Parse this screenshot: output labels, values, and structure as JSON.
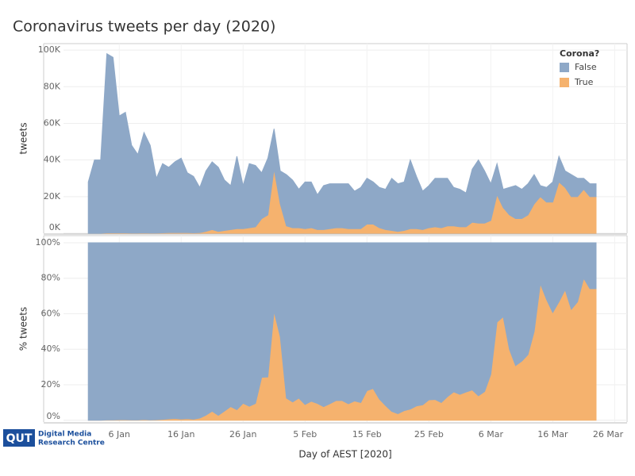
{
  "chart_data": [
    {
      "type": "area",
      "title": "Coronavirus tweets per day (2020)",
      "ylabel": "tweets",
      "x": [
        "2020-01-01",
        "2020-01-02",
        "2020-01-03",
        "2020-01-04",
        "2020-01-05",
        "2020-01-06",
        "2020-01-07",
        "2020-01-08",
        "2020-01-09",
        "2020-01-10",
        "2020-01-11",
        "2020-01-12",
        "2020-01-13",
        "2020-01-14",
        "2020-01-15",
        "2020-01-16",
        "2020-01-17",
        "2020-01-18",
        "2020-01-19",
        "2020-01-20",
        "2020-01-21",
        "2020-01-22",
        "2020-01-23",
        "2020-01-24",
        "2020-01-25",
        "2020-01-26",
        "2020-01-27",
        "2020-01-28",
        "2020-01-29",
        "2020-01-30",
        "2020-01-31",
        "2020-02-01",
        "2020-02-02",
        "2020-02-03",
        "2020-02-04",
        "2020-02-05",
        "2020-02-06",
        "2020-02-07",
        "2020-02-08",
        "2020-02-09",
        "2020-02-10",
        "2020-02-11",
        "2020-02-12",
        "2020-02-13",
        "2020-02-14",
        "2020-02-15",
        "2020-02-16",
        "2020-02-17",
        "2020-02-18",
        "2020-02-19",
        "2020-02-20",
        "2020-02-21",
        "2020-02-22",
        "2020-02-23",
        "2020-02-24",
        "2020-02-25",
        "2020-02-26",
        "2020-02-27",
        "2020-02-28",
        "2020-02-29",
        "2020-03-01",
        "2020-03-02",
        "2020-03-03",
        "2020-03-04",
        "2020-03-05",
        "2020-03-06",
        "2020-03-07",
        "2020-03-08",
        "2020-03-09",
        "2020-03-10",
        "2020-03-11",
        "2020-03-12",
        "2020-03-13",
        "2020-03-14",
        "2020-03-15",
        "2020-03-16",
        "2020-03-17",
        "2020-03-18",
        "2020-03-19",
        "2020-03-20",
        "2020-03-21",
        "2020-03-22",
        "2020-03-23"
      ],
      "xlim": [
        "2019-12-28",
        "2020-03-28"
      ],
      "ylim": [
        0,
        103500
      ],
      "yticks": [
        {
          "value": 0,
          "label": "0K"
        },
        {
          "value": 20000,
          "label": "20K"
        },
        {
          "value": 40000,
          "label": "40K"
        },
        {
          "value": 60000,
          "label": "60K"
        },
        {
          "value": 80000,
          "label": "80K"
        },
        {
          "value": 100000,
          "label": "100K"
        }
      ],
      "stacked": true,
      "grid": true,
      "legend": {
        "title": "Corona?",
        "position": "upper right"
      },
      "series": [
        {
          "name": "False",
          "color": "#8ea8c7",
          "values": [
            28000,
            40000,
            40000,
            97800,
            95800,
            63800,
            65800,
            47900,
            42900,
            54800,
            47900,
            29900,
            37800,
            35700,
            38600,
            40700,
            32700,
            30800,
            24700,
            33000,
            37000,
            35000,
            27500,
            24000,
            39500,
            23500,
            35000,
            33500,
            25000,
            31000,
            22000,
            18000,
            28000,
            26000,
            21000,
            25500,
            25000,
            19000,
            24000,
            24500,
            24000,
            24000,
            24500,
            20500,
            22500,
            25000,
            23000,
            22000,
            22000,
            28500,
            26000,
            26500,
            37500,
            28500,
            21000,
            23000,
            26500,
            27000,
            26000,
            21000,
            20500,
            18500,
            29000,
            34500,
            28500,
            20000,
            17000,
            10000,
            15000,
            18000,
            16000,
            17000,
            16000,
            6000,
            8000,
            11000,
            14000,
            9000,
            12000,
            10000,
            6000,
            7000,
            7000
          ]
        },
        {
          "name": "True",
          "color": "#f5b26e",
          "values": [
            0,
            0,
            0,
            200,
            200,
            200,
            200,
            100,
            100,
            200,
            100,
            100,
            200,
            300,
            400,
            300,
            300,
            200,
            300,
            1000,
            2000,
            1000,
            1500,
            2000,
            2500,
            2500,
            3000,
            3500,
            8000,
            10000,
            35000,
            16000,
            4000,
            3000,
            3000,
            2500,
            3000,
            2000,
            2000,
            2500,
            3000,
            3000,
            2500,
            2500,
            2500,
            5000,
            5000,
            3000,
            2000,
            1500,
            1000,
            1500,
            2500,
            2500,
            2000,
            3000,
            3500,
            3000,
            4000,
            4000,
            3500,
            3500,
            6000,
            5500,
            5500,
            7000,
            21000,
            14000,
            10000,
            8000,
            8000,
            10000,
            16000,
            20000,
            17000,
            17000,
            28000,
            25000,
            20000,
            20000,
            24000,
            20000,
            20000
          ]
        }
      ]
    },
    {
      "type": "area",
      "ylabel": "% tweets",
      "xlabel": "Day of AEST [2020]",
      "x": [
        "2020-01-01",
        "2020-01-02",
        "2020-01-03",
        "2020-01-04",
        "2020-01-05",
        "2020-01-06",
        "2020-01-07",
        "2020-01-08",
        "2020-01-09",
        "2020-01-10",
        "2020-01-11",
        "2020-01-12",
        "2020-01-13",
        "2020-01-14",
        "2020-01-15",
        "2020-01-16",
        "2020-01-17",
        "2020-01-18",
        "2020-01-19",
        "2020-01-20",
        "2020-01-21",
        "2020-01-22",
        "2020-01-23",
        "2020-01-24",
        "2020-01-25",
        "2020-01-26",
        "2020-01-27",
        "2020-01-28",
        "2020-01-29",
        "2020-01-30",
        "2020-01-31",
        "2020-02-01",
        "2020-02-02",
        "2020-02-03",
        "2020-02-04",
        "2020-02-05",
        "2020-02-06",
        "2020-02-07",
        "2020-02-08",
        "2020-02-09",
        "2020-02-10",
        "2020-02-11",
        "2020-02-12",
        "2020-02-13",
        "2020-02-14",
        "2020-02-15",
        "2020-02-16",
        "2020-02-17",
        "2020-02-18",
        "2020-02-19",
        "2020-02-20",
        "2020-02-21",
        "2020-02-22",
        "2020-02-23",
        "2020-02-24",
        "2020-02-25",
        "2020-02-26",
        "2020-02-27",
        "2020-02-28",
        "2020-02-29",
        "2020-03-01",
        "2020-03-02",
        "2020-03-03",
        "2020-03-04",
        "2020-03-05",
        "2020-03-06",
        "2020-03-07",
        "2020-03-08",
        "2020-03-09",
        "2020-03-10",
        "2020-03-11",
        "2020-03-12",
        "2020-03-13",
        "2020-03-14",
        "2020-03-15",
        "2020-03-16",
        "2020-03-17",
        "2020-03-18",
        "2020-03-19",
        "2020-03-20",
        "2020-03-21",
        "2020-03-22",
        "2020-03-23"
      ],
      "xlim": [
        "2019-12-28",
        "2020-03-28"
      ],
      "xticks": [
        {
          "value": "2020-01-06",
          "label": "6 Jan"
        },
        {
          "value": "2020-01-16",
          "label": "16 Jan"
        },
        {
          "value": "2020-01-26",
          "label": "26 Jan"
        },
        {
          "value": "2020-02-05",
          "label": "5 Feb"
        },
        {
          "value": "2020-02-15",
          "label": "15 Feb"
        },
        {
          "value": "2020-02-25",
          "label": "25 Feb"
        },
        {
          "value": "2020-03-06",
          "label": "6 Mar"
        },
        {
          "value": "2020-03-16",
          "label": "16 Mar"
        },
        {
          "value": "2020-03-26",
          "label": "26 Mar"
        }
      ],
      "ylim": [
        -1,
        104
      ],
      "yticks": [
        {
          "value": 0,
          "label": "0%"
        },
        {
          "value": 20,
          "label": "20%"
        },
        {
          "value": 40,
          "label": "40%"
        },
        {
          "value": 60,
          "label": "60%"
        },
        {
          "value": 80,
          "label": "80%"
        },
        {
          "value": 100,
          "label": "100%"
        }
      ],
      "stacked": true,
      "grid": true,
      "series": [
        {
          "name": "False",
          "color": "#8ea8c7",
          "values": [
            100,
            100,
            100,
            99.8,
            99.8,
            99.7,
            99.7,
            99.8,
            99.8,
            99.6,
            99.8,
            99.7,
            99.5,
            99.2,
            99,
            99.3,
            99.1,
            99.4,
            98.8,
            97.1,
            94.9,
            97.2,
            94.8,
            92.3,
            94,
            90.4,
            92.1,
            90.5,
            75.8,
            75.6,
            38.6,
            52.9,
            87.5,
            89.7,
            87.5,
            91.1,
            89.3,
            90.5,
            92.3,
            90.7,
            88.9,
            88.9,
            90.7,
            89.1,
            90,
            83.3,
            82.1,
            88,
            91.7,
            95,
            96.3,
            94.6,
            93.7,
            91.9,
            91.3,
            88.5,
            88.3,
            90,
            86.7,
            84,
            85.4,
            84.1,
            82.9,
            86.2,
            83.8,
            74.1,
            44.7,
            41.7,
            60,
            69.2,
            66.7,
            63,
            50,
            23.1,
            32,
            39.3,
            33.3,
            26.5,
            37.5,
            33.3,
            20,
            25.9,
            25.9
          ]
        },
        {
          "name": "True",
          "color": "#f5b26e",
          "values": [
            0,
            0,
            0,
            0.2,
            0.2,
            0.3,
            0.3,
            0.2,
            0.2,
            0.4,
            0.2,
            0.3,
            0.5,
            0.8,
            1,
            0.7,
            0.9,
            0.6,
            1.2,
            2.9,
            5.1,
            2.8,
            5.2,
            7.7,
            6,
            9.6,
            7.9,
            9.5,
            24.2,
            24.4,
            61.4,
            47.1,
            12.5,
            10.3,
            12.5,
            8.9,
            10.7,
            9.5,
            7.7,
            9.3,
            11.1,
            11.1,
            9.3,
            10.9,
            10,
            16.7,
            17.9,
            12,
            8.3,
            5,
            3.7,
            5.4,
            6.3,
            8.1,
            8.7,
            11.5,
            11.7,
            10,
            13.3,
            16,
            14.6,
            15.9,
            17.1,
            13.8,
            16.2,
            25.9,
            55.3,
            58.3,
            40,
            30.8,
            33.3,
            37,
            50,
            76.9,
            68,
            60.7,
            66.7,
            73.5,
            62.5,
            66.7,
            80,
            74.1,
            74.1
          ]
        }
      ]
    }
  ],
  "logo": {
    "mark": "QUT",
    "lines": [
      "Digital Media",
      "Research Centre"
    ]
  }
}
